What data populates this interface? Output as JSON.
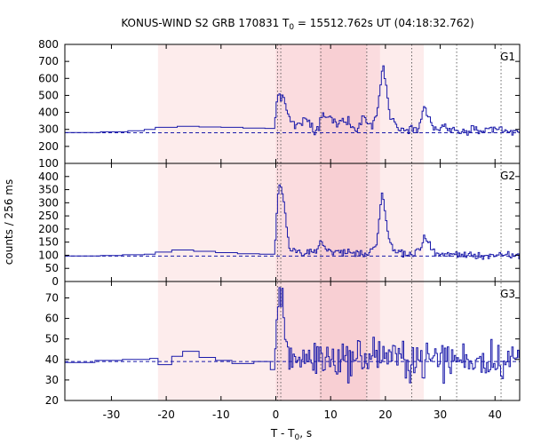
{
  "chart_data": {
    "type": "line",
    "title_parts": {
      "prefix": "KONUS-WIND S2 GRB 170831 T",
      "sub": "0",
      "suffix": " = 15512.762s UT (04:18:32.762)"
    },
    "xlabel_parts": {
      "prefix": "T - T",
      "sub": "0",
      "suffix": ", s"
    },
    "ylabel": "counts / 256 ms",
    "xlim": [
      -38.5,
      44.5
    ],
    "x_ticks": [
      -30,
      -20,
      -10,
      0,
      10,
      20,
      30,
      40
    ],
    "x_tick_labels": [
      "-30",
      "-20",
      "-10",
      "0",
      "10",
      "20",
      "30",
      "40"
    ],
    "shaded_intervals": [
      {
        "x0": -21.5,
        "x1": 27.0,
        "level": "light"
      },
      {
        "x0": 0.0,
        "x1": 19.0,
        "level": "medium"
      },
      {
        "x0": 8.0,
        "x1": 16.5,
        "level": "dark"
      }
    ],
    "vlines": [
      0.3,
      0.9,
      8.2,
      16.6,
      24.8,
      33.0,
      41.1
    ],
    "colors": {
      "line": "#1a1aaa",
      "background_fit": "#1a1aaa",
      "light": "#fdecec",
      "medium": "#fbdcdf",
      "dark": "#f8cfd3",
      "vline": "#444444"
    },
    "panels": [
      {
        "name": "G1",
        "ylim": [
          100,
          800
        ],
        "yticks": [
          100,
          200,
          300,
          400,
          500,
          600,
          700,
          800
        ],
        "ytick_labels": [
          "100",
          "200",
          "300",
          "400",
          "500",
          "600",
          "700",
          "800"
        ],
        "background": 280,
        "coarse": [
          [
            -38.5,
            282
          ],
          [
            -32,
            286
          ],
          [
            -27,
            292
          ],
          [
            -24,
            300
          ],
          [
            -22,
            312
          ],
          [
            -18,
            318
          ],
          [
            -14,
            314
          ],
          [
            -10,
            312
          ],
          [
            -6,
            308
          ],
          [
            -2,
            306
          ]
        ],
        "fine": [
          [
            -0.2,
            320
          ],
          [
            0.3,
            500
          ],
          [
            0.6,
            520
          ],
          [
            0.9,
            490
          ],
          [
            1.2,
            505
          ],
          [
            1.6,
            440
          ],
          [
            2.2,
            400
          ],
          [
            2.8,
            350
          ],
          [
            3.5,
            320
          ],
          [
            4.5,
            330
          ],
          [
            5.5,
            360
          ],
          [
            6.5,
            320
          ],
          [
            7.2,
            280
          ],
          [
            7.8,
            300
          ],
          [
            8.2,
            370
          ],
          [
            8.8,
            380
          ],
          [
            9.5,
            370
          ],
          [
            10.2,
            360
          ],
          [
            11,
            330
          ],
          [
            12,
            350
          ],
          [
            13,
            360
          ],
          [
            14,
            320
          ],
          [
            15,
            300
          ],
          [
            15.5,
            340
          ],
          [
            16,
            390
          ],
          [
            16.6,
            340
          ],
          [
            17.5,
            320
          ],
          [
            18.5,
            400
          ],
          [
            19.2,
            590
          ],
          [
            19.6,
            670
          ],
          [
            20,
            600
          ],
          [
            20.5,
            450
          ],
          [
            21,
            360
          ],
          [
            22,
            330
          ],
          [
            23,
            300
          ],
          [
            24,
            310
          ],
          [
            25,
            300
          ],
          [
            26,
            320
          ],
          [
            26.7,
            400
          ],
          [
            27.2,
            430
          ],
          [
            27.8,
            380
          ],
          [
            28.5,
            320
          ],
          [
            29.5,
            300
          ],
          [
            30.5,
            320
          ],
          [
            31.5,
            290
          ],
          [
            32.5,
            300
          ],
          [
            33.5,
            285
          ],
          [
            35,
            290
          ],
          [
            36.5,
            300
          ],
          [
            38,
            285
          ],
          [
            39.5,
            290
          ],
          [
            41,
            300
          ],
          [
            42.5,
            280
          ],
          [
            44,
            290
          ]
        ],
        "noise": 18
      },
      {
        "name": "G2",
        "ylim": [
          0,
          450
        ],
        "yticks": [
          0,
          50,
          100,
          150,
          200,
          250,
          300,
          350,
          400
        ],
        "ytick_labels": [
          "0",
          "50",
          "100",
          "150",
          "200",
          "250",
          "300",
          "350",
          "400"
        ],
        "background": 97,
        "coarse": [
          [
            -38.5,
            97
          ],
          [
            -32,
            99
          ],
          [
            -28,
            102
          ],
          [
            -24,
            104
          ],
          [
            -22,
            112
          ],
          [
            -19,
            120
          ],
          [
            -15,
            115
          ],
          [
            -11,
            110
          ],
          [
            -7,
            106
          ],
          [
            -3,
            104
          ]
        ],
        "fine": [
          [
            -0.2,
            110
          ],
          [
            0.3,
            300
          ],
          [
            0.6,
            370
          ],
          [
            0.9,
            360
          ],
          [
            1.2,
            340
          ],
          [
            1.6,
            270
          ],
          [
            2.0,
            200
          ],
          [
            2.5,
            130
          ],
          [
            3.5,
            115
          ],
          [
            5,
            110
          ],
          [
            6.5,
            105
          ],
          [
            7.5,
            110
          ],
          [
            8.2,
            170
          ],
          [
            8.6,
            140
          ],
          [
            9.5,
            120
          ],
          [
            11,
            110
          ],
          [
            12.5,
            115
          ],
          [
            14,
            110
          ],
          [
            15.5,
            105
          ],
          [
            17,
            110
          ],
          [
            18.5,
            150
          ],
          [
            19.1,
            300
          ],
          [
            19.5,
            330
          ],
          [
            19.9,
            260
          ],
          [
            20.5,
            170
          ],
          [
            21.5,
            120
          ],
          [
            22.5,
            110
          ],
          [
            24,
            105
          ],
          [
            25.5,
            110
          ],
          [
            26.5,
            130
          ],
          [
            27.1,
            175
          ],
          [
            27.6,
            150
          ],
          [
            28.5,
            120
          ],
          [
            30,
            105
          ],
          [
            31.5,
            100
          ],
          [
            33,
            105
          ],
          [
            35,
            100
          ],
          [
            37,
            98
          ],
          [
            39,
            100
          ],
          [
            41,
            98
          ],
          [
            43,
            97
          ],
          [
            44,
            96
          ]
        ],
        "noise": 10
      },
      {
        "name": "G3",
        "ylim": [
          20,
          78
        ],
        "yticks": [
          20,
          30,
          40,
          50,
          60,
          70
        ],
        "ytick_labels": [
          "20",
          "30",
          "40",
          "50",
          "60",
          "70"
        ],
        "background": 39,
        "coarse": [
          [
            -38.5,
            38.5
          ],
          [
            -33,
            39.5
          ],
          [
            -28,
            40
          ],
          [
            -23,
            40.5
          ],
          [
            -21.5,
            37.5
          ],
          [
            -19,
            41.5
          ],
          [
            -17,
            44
          ],
          [
            -14,
            41
          ],
          [
            -11,
            39.5
          ],
          [
            -8,
            38
          ],
          [
            -4,
            39
          ],
          [
            -1,
            35
          ]
        ],
        "fine": [
          [
            -0.2,
            38
          ],
          [
            0.3,
            68
          ],
          [
            0.6,
            73
          ],
          [
            0.9,
            66
          ],
          [
            1.2,
            70
          ],
          [
            1.6,
            55
          ],
          [
            2.2,
            45
          ],
          [
            3,
            41
          ],
          [
            5,
            40
          ],
          [
            8,
            41
          ],
          [
            12,
            40
          ],
          [
            16,
            41
          ],
          [
            19.5,
            43
          ],
          [
            22,
            40
          ],
          [
            26,
            40
          ],
          [
            30,
            40
          ],
          [
            34,
            40
          ],
          [
            38,
            40
          ],
          [
            42,
            40
          ],
          [
            44,
            40
          ]
        ],
        "noise": 6.5
      }
    ]
  }
}
